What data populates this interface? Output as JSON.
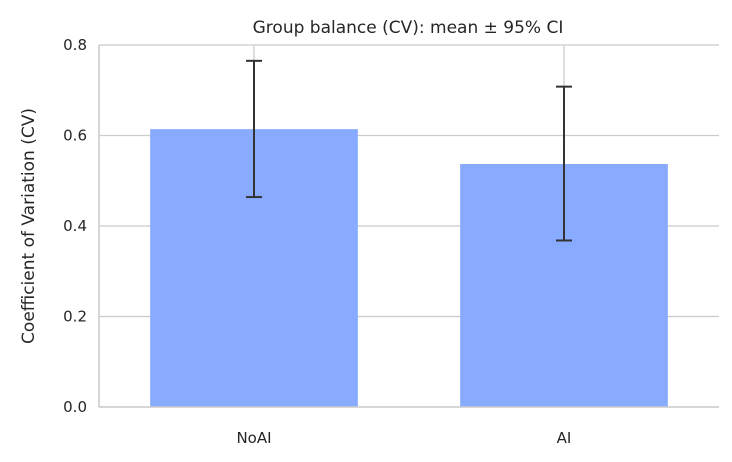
{
  "chart_data": {
    "type": "bar",
    "title": "Group balance (CV): mean ± 95% CI",
    "xlabel": "",
    "ylabel": "Coefficient of Variation (CV)",
    "categories": [
      "NoAI",
      "AI"
    ],
    "values": [
      0.614,
      0.537
    ],
    "ci_lower": [
      0.464,
      0.368
    ],
    "ci_upper": [
      0.765,
      0.708
    ],
    "ylim": [
      0,
      0.8
    ],
    "yticks": [
      0.0,
      0.2,
      0.4,
      0.6,
      0.8
    ],
    "ytick_labels": [
      "0.0",
      "0.2",
      "0.4",
      "0.6",
      "0.8"
    ],
    "grid": true,
    "bar_color": "#88aaff",
    "errorbar_color": "#333333",
    "grid_color": "#cccccc"
  }
}
